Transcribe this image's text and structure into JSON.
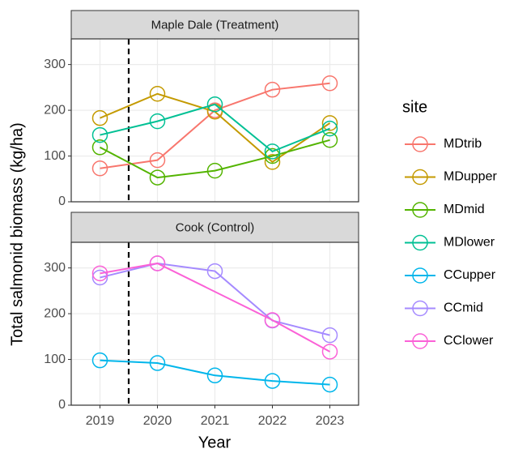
{
  "chart_data": {
    "type": "line",
    "x_label": "Year",
    "y_label": "Total salmonid biomass (kg/ha)",
    "legend_title": "site",
    "facets": [
      "Maple Dale (Treatment)",
      "Cook (Control)"
    ],
    "xlim": [
      2018.5,
      2023.5
    ],
    "xticks": [
      2019,
      2020,
      2021,
      2022,
      2023
    ],
    "ylim": [
      0,
      356
    ],
    "yticks": [
      0,
      100,
      200,
      300
    ],
    "vline": 2019.5,
    "grid": true,
    "legend": "right",
    "series": [
      {
        "name": "MDtrib",
        "color": "#F8766D",
        "facet": 0,
        "x": [
          2019,
          2020,
          2021,
          2022,
          2023
        ],
        "values": [
          73,
          91,
          200,
          245,
          259
        ]
      },
      {
        "name": "MDupper",
        "color": "#C49A00",
        "facet": 0,
        "x": [
          2019,
          2020,
          2021,
          2022,
          2023
        ],
        "values": [
          183,
          236,
          197,
          87,
          172
        ]
      },
      {
        "name": "MDmid",
        "color": "#53B400",
        "facet": 0,
        "x": [
          2019,
          2020,
          2021,
          2022,
          2023
        ],
        "values": [
          119,
          53,
          68,
          100,
          135
        ]
      },
      {
        "name": "MDlower",
        "color": "#00C094",
        "facet": 0,
        "x": [
          2019,
          2020,
          2021,
          2022,
          2023
        ],
        "values": [
          146,
          176,
          213,
          110,
          160
        ]
      },
      {
        "name": "CCupper",
        "color": "#00B6EB",
        "facet": 1,
        "x": [
          2019,
          2020,
          2021,
          2022,
          2023
        ],
        "values": [
          98,
          92,
          65,
          53,
          45
        ]
      },
      {
        "name": "CCmid",
        "color": "#A58AFF",
        "facet": 1,
        "x": [
          2019,
          2020,
          2021,
          2022,
          2023
        ],
        "values": [
          279,
          310,
          293,
          185,
          153
        ]
      },
      {
        "name": "CClower",
        "color": "#FB61D7",
        "facet": 1,
        "x": [
          2019,
          2020,
          2022,
          2023
        ],
        "values": [
          288,
          310,
          186,
          117
        ]
      }
    ]
  }
}
